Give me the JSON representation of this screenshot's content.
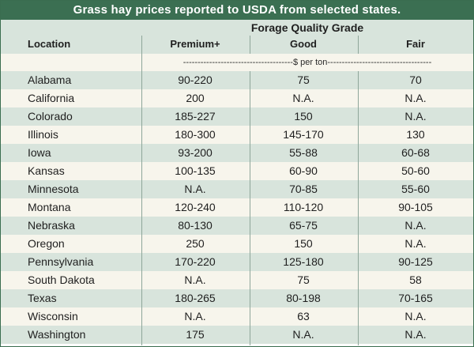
{
  "title": "Grass hay prices reported to USDA from selected states.",
  "header": {
    "location_label": "Location",
    "grade_label": "Forage Quality Grade",
    "col_premium": "Premium+",
    "col_good": "Good",
    "col_fair": "Fair",
    "unit_label": "--------------------------------------$ per ton------------------------------------"
  },
  "rows": [
    {
      "location": "Alabama",
      "premium": "90-220",
      "good": "75",
      "fair": "70"
    },
    {
      "location": "California",
      "premium": "200",
      "good": "N.A.",
      "fair": "N.A."
    },
    {
      "location": "Colorado",
      "premium": "185-227",
      "good": "150",
      "fair": "N.A."
    },
    {
      "location": "Illinois",
      "premium": "180-300",
      "good": "145-170",
      "fair": "130"
    },
    {
      "location": "Iowa",
      "premium": "93-200",
      "good": "55-88",
      "fair": "60-68"
    },
    {
      "location": "Kansas",
      "premium": "100-135",
      "good": "60-90",
      "fair": "50-60"
    },
    {
      "location": "Minnesota",
      "premium": "N.A.",
      "good": "70-85",
      "fair": "55-60"
    },
    {
      "location": "Montana",
      "premium": "120-240",
      "good": "110-120",
      "fair": "90-105"
    },
    {
      "location": "Nebraska",
      "premium": "80-130",
      "good": "65-75",
      "fair": "N.A."
    },
    {
      "location": "Oregon",
      "premium": "250",
      "good": "150",
      "fair": "N.A."
    },
    {
      "location": "Pennsylvania",
      "premium": "170-220",
      "good": "125-180",
      "fair": "90-125"
    },
    {
      "location": "South Dakota",
      "premium": "N.A.",
      "good": "75",
      "fair": "58"
    },
    {
      "location": "Texas",
      "premium": "180-265",
      "good": "80-198",
      "fair": "70-165"
    },
    {
      "location": "Wisconsin",
      "premium": "N.A.",
      "good": "63",
      "fair": "N.A."
    },
    {
      "location": "Washington",
      "premium": "175",
      "good": "N.A.",
      "fair": "N.A."
    }
  ]
}
